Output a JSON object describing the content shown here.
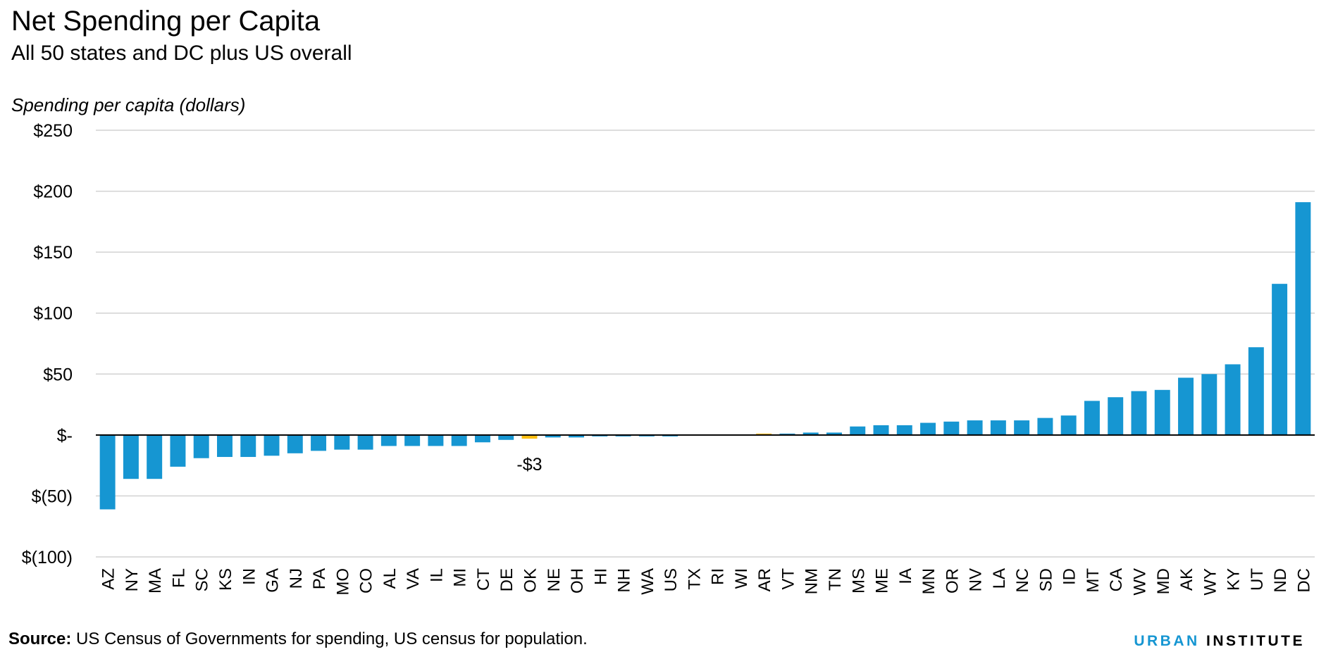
{
  "chart_data": {
    "type": "bar",
    "title": "Net Spending per Capita",
    "subtitle": "All 50 states and DC plus US overall",
    "ylabel": "Spending per capita (dollars)",
    "ylim": [
      -100,
      250
    ],
    "yticks": [
      250,
      200,
      150,
      100,
      50,
      0,
      -50,
      -100
    ],
    "ytick_labels": [
      "$250",
      "$200",
      "$150",
      "$100",
      "$50",
      "$-",
      "$(50)",
      "$(100)"
    ],
    "grid": true,
    "categories": [
      "AZ",
      "NY",
      "MA",
      "FL",
      "SC",
      "KS",
      "IN",
      "GA",
      "NJ",
      "PA",
      "MO",
      "CO",
      "AL",
      "VA",
      "IL",
      "MI",
      "CT",
      "DE",
      "OK",
      "NE",
      "OH",
      "HI",
      "NH",
      "WA",
      "US",
      "TX",
      "RI",
      "WI",
      "AR",
      "VT",
      "NM",
      "TN",
      "MS",
      "ME",
      "IA",
      "MN",
      "OR",
      "NV",
      "LA",
      "NC",
      "SD",
      "ID",
      "MT",
      "CA",
      "WV",
      "MD",
      "AK",
      "WY",
      "KY",
      "UT",
      "ND",
      "DC"
    ],
    "values": [
      -61,
      -36,
      -36,
      -26,
      -19,
      -18,
      -18,
      -17,
      -15,
      -13,
      -12,
      -12,
      -9,
      -9,
      -9,
      -9,
      -6,
      -4,
      -3,
      -2,
      -2,
      -1,
      -1,
      -1,
      -1,
      0,
      0,
      0,
      0.5,
      1,
      2,
      2,
      7,
      8,
      8,
      10,
      11,
      12,
      12,
      12,
      14,
      16,
      28,
      31,
      36,
      37,
      47,
      50,
      58,
      72,
      124,
      191
    ],
    "highlight": {
      "OK": "#fdbf11",
      "AR": "#fdbf11"
    },
    "bar_color": "#1696d2",
    "highlight_color": "#fdbf11",
    "annotations": [
      {
        "category": "OK",
        "text": "-$3"
      }
    ]
  },
  "source": {
    "label": "Source:",
    "text": "US Census of Governments for spending, US census for population."
  },
  "logo": {
    "brand": "URBAN",
    "rest": "INSTITUTE"
  }
}
